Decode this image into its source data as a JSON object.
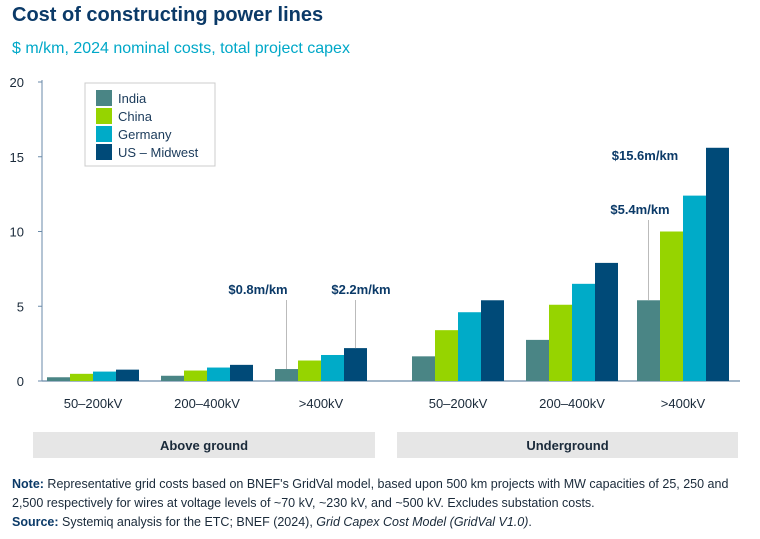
{
  "title": "Cost of constructing power lines",
  "subtitle": "$ m/km, 2024 nominal costs, total project capex",
  "chart_data": {
    "type": "bar",
    "title": "Cost of constructing power lines",
    "ylabel": "",
    "ylim": [
      0,
      20
    ],
    "yticks": [
      "0",
      "5",
      "10",
      "15",
      "20"
    ],
    "categories": [
      "50–200kV",
      "200–400kV",
      ">400kV",
      "50–200kV",
      "200–400kV",
      ">400kV"
    ],
    "category_groups": [
      "Above ground",
      "Underground"
    ],
    "legend_position": "top-left",
    "grid": false,
    "series": [
      {
        "name": "India",
        "color": "#4a8585",
        "values": [
          0.25,
          0.35,
          0.8,
          1.65,
          2.75,
          5.4
        ]
      },
      {
        "name": "China",
        "color": "#96d400",
        "values": [
          0.48,
          0.7,
          1.37,
          3.4,
          5.1,
          10.0
        ]
      },
      {
        "name": "Germany",
        "color": "#00abc8",
        "values": [
          0.63,
          0.9,
          1.74,
          4.6,
          6.5,
          12.4
        ]
      },
      {
        "name": "US – Midwest",
        "color": "#004a78",
        "values": [
          0.76,
          1.08,
          2.2,
          5.4,
          7.9,
          15.6
        ]
      }
    ],
    "annotations": [
      {
        "text": "$0.8m/km",
        "category": 2,
        "series": 0
      },
      {
        "text": "$2.2m/km",
        "category": 2,
        "series": 3
      },
      {
        "text": "$5.4m/km",
        "category": 5,
        "series": 0
      },
      {
        "text": "$15.6m/km",
        "category": 5,
        "series": 3
      }
    ]
  },
  "note": {
    "label": "Note:",
    "text": " Representative grid costs based on BNEF's GridVal model, based upon 500 km projects with MW capacities of 25, 250 and 2,500 respectively for wires at voltage levels of ~70 kV, ~230 kV, and ~500 kV. Excludes substation costs."
  },
  "source": {
    "label": "Source:",
    "text": " Systemiq analysis for the ETC; BNEF (2024), ",
    "italic": "Grid Capex Cost Model (GridVal V1.0)",
    "end": "."
  }
}
